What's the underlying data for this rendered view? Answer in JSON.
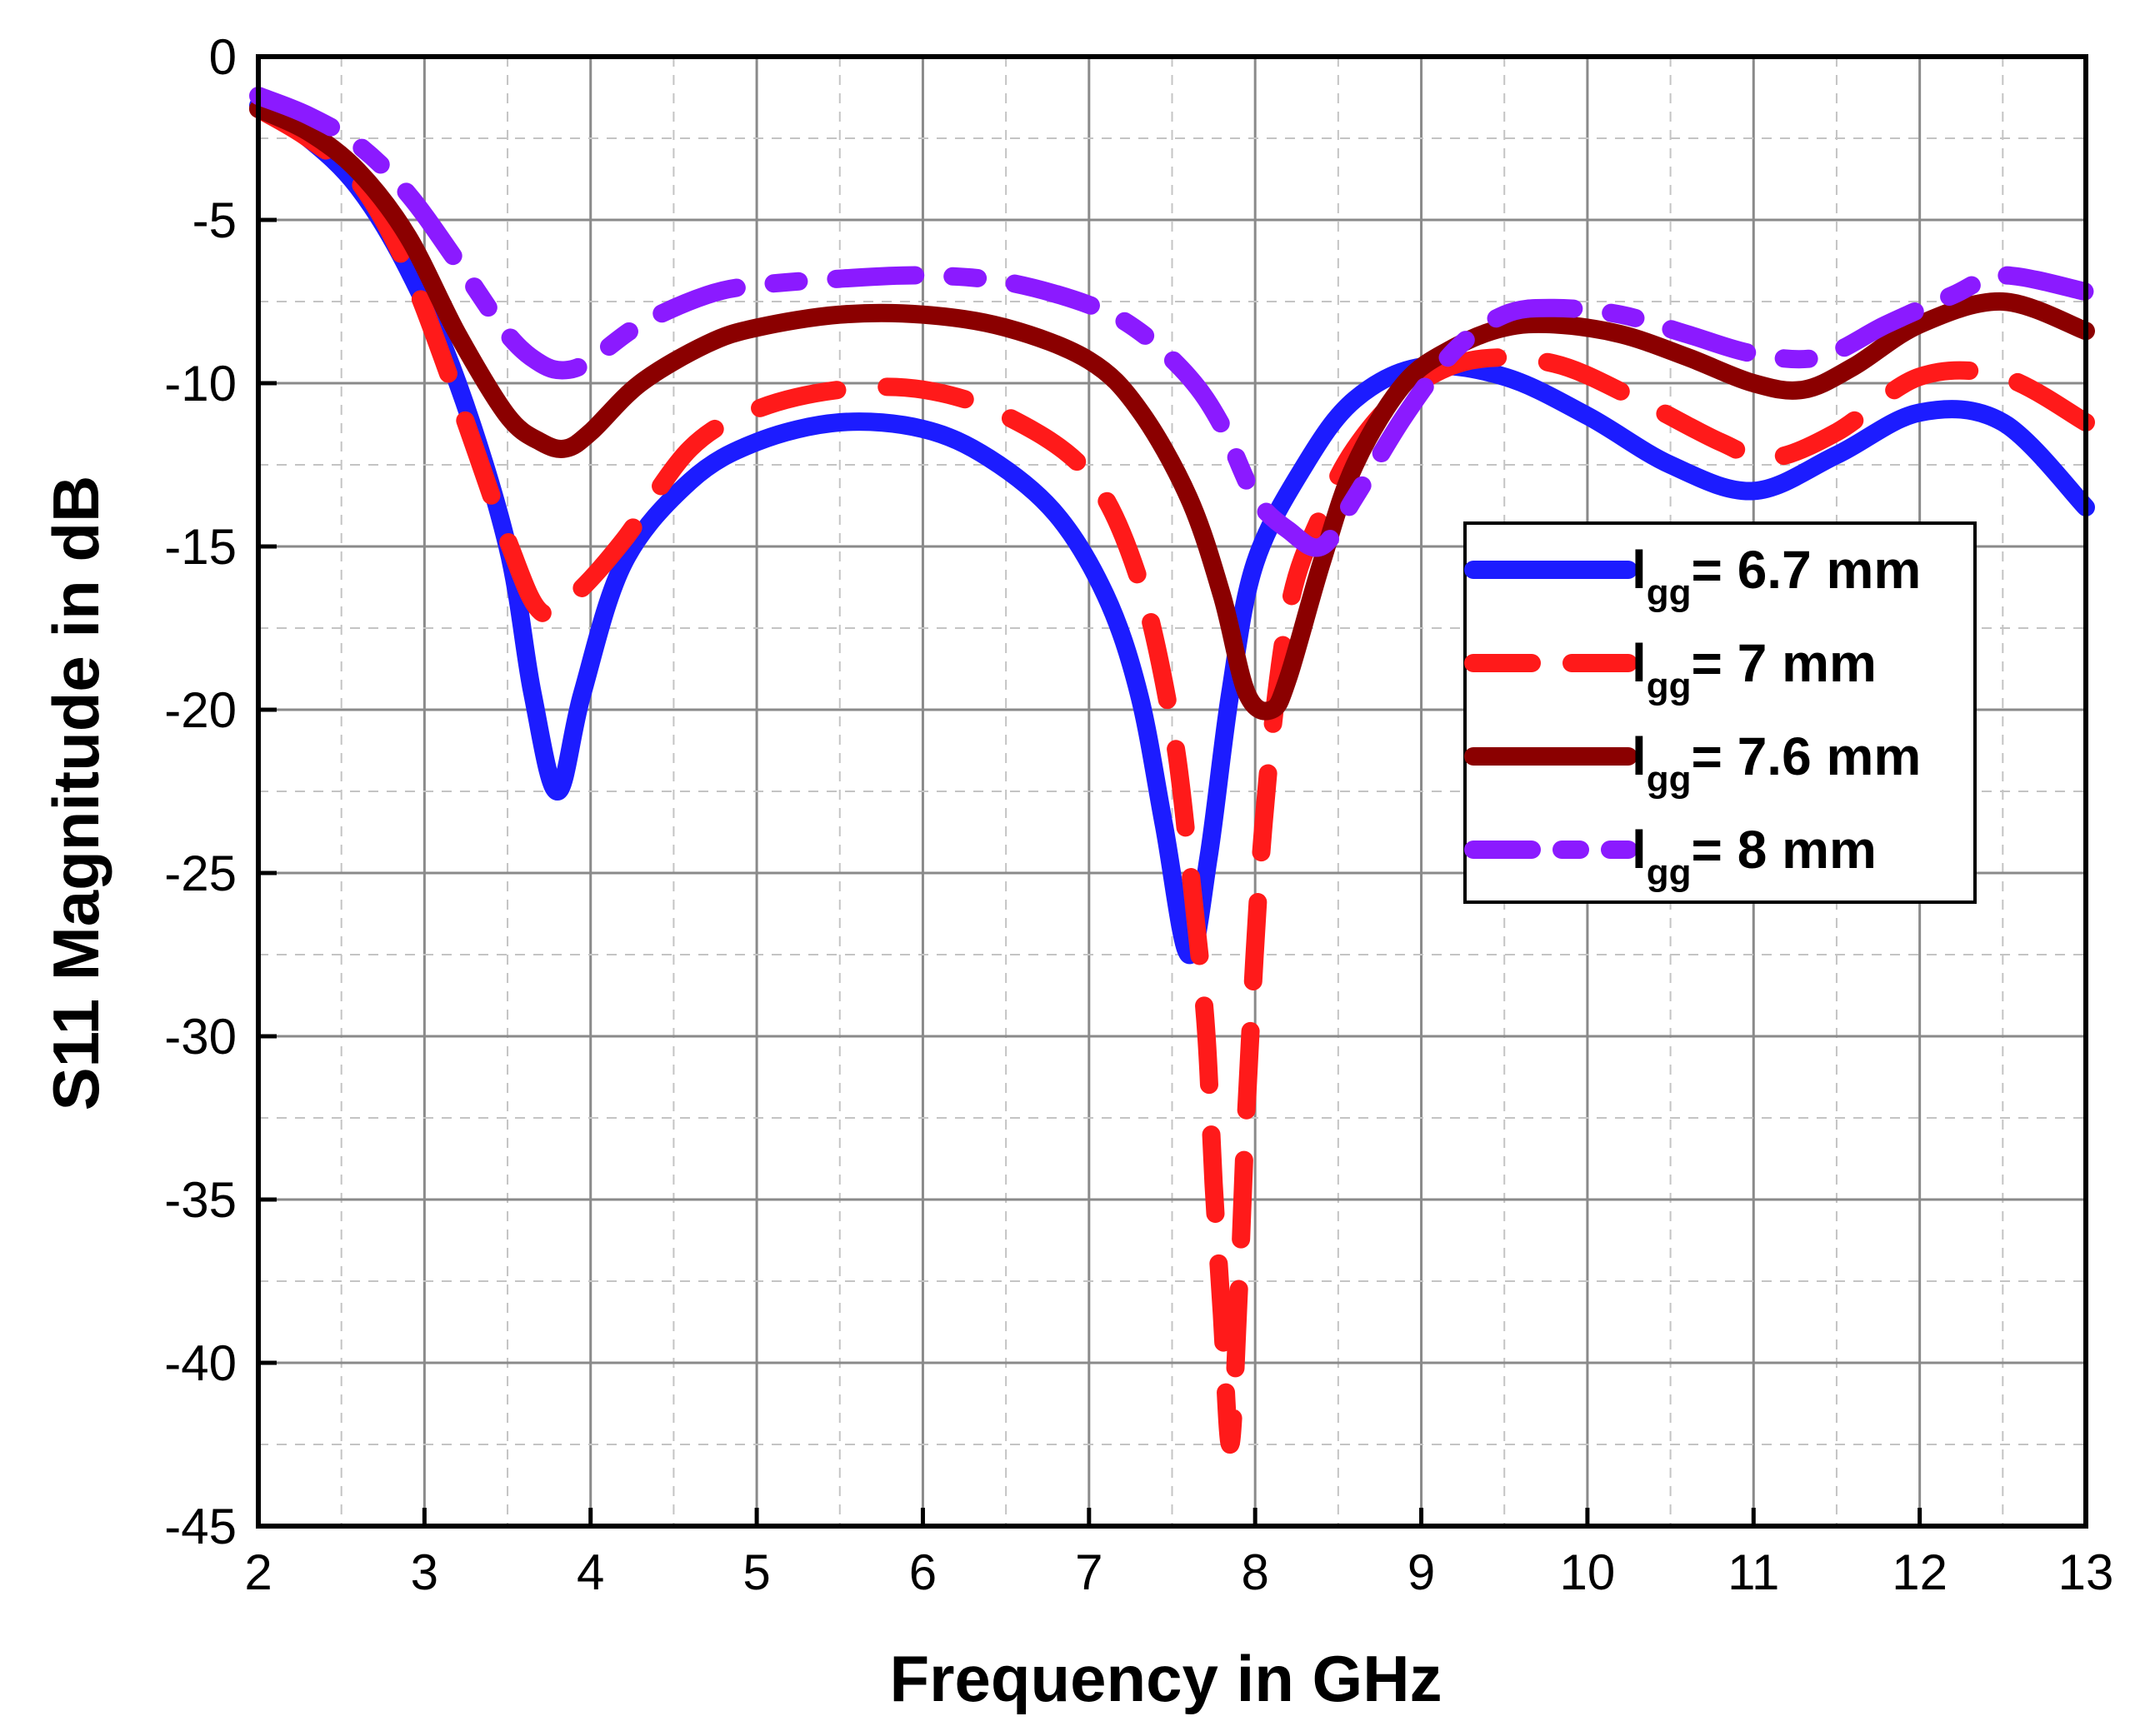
{
  "chart_data": {
    "type": "line",
    "xlabel": "Frequency in GHz",
    "ylabel": "S11 Magnitude in dB",
    "xlim": [
      2,
      13
    ],
    "ylim": [
      -45,
      0
    ],
    "xticks": [
      "2",
      "3",
      "4",
      "5",
      "6",
      "7",
      "8",
      "9",
      "10",
      "11",
      "12",
      "13"
    ],
    "yticks": [
      "0",
      "-5",
      "-10",
      "-15",
      "-20",
      "-25",
      "-30",
      "-35",
      "-40",
      "-45"
    ],
    "grid": true,
    "legend_position": "right-middle",
    "series": [
      {
        "name": "lgg= 6.7 mm",
        "label_main": "l",
        "label_sub": "gg",
        "label_rest": "= 6.7 mm",
        "color": "#1c1cff",
        "style": "solid",
        "x": [
          2.0,
          2.3,
          2.6,
          2.9,
          3.2,
          3.5,
          3.65,
          3.8,
          3.95,
          4.2,
          4.6,
          5.0,
          5.5,
          6.0,
          6.4,
          6.8,
          7.1,
          7.3,
          7.45,
          7.6,
          7.72,
          7.85,
          8.0,
          8.3,
          8.6,
          9.0,
          9.5,
          10.0,
          10.5,
          11.0,
          11.5,
          12.0,
          12.5,
          13.0
        ],
        "y": [
          -1.5,
          -2.5,
          -4.0,
          -6.5,
          -10.0,
          -15.0,
          -19.5,
          -22.5,
          -19.5,
          -15.5,
          -13.0,
          -11.8,
          -11.2,
          -11.4,
          -12.3,
          -14.0,
          -16.5,
          -19.5,
          -23.5,
          -27.5,
          -24.5,
          -19.5,
          -15.5,
          -12.5,
          -10.5,
          -9.5,
          -9.8,
          -11.0,
          -12.5,
          -13.3,
          -12.2,
          -10.9,
          -11.2,
          -13.8
        ]
      },
      {
        "name": "lgg= 7 mm",
        "label_main": "l",
        "label_sub": "gg",
        "label_rest": "= 7 mm",
        "color": "#ff1a1a",
        "style": "dash",
        "x": [
          2.0,
          2.3,
          2.6,
          2.9,
          3.2,
          3.5,
          3.7,
          3.9,
          4.2,
          4.6,
          5.0,
          5.5,
          6.0,
          6.5,
          7.0,
          7.3,
          7.5,
          7.6,
          7.7,
          7.75,
          7.8,
          7.85,
          7.9,
          7.95,
          8.05,
          8.2,
          8.4,
          8.6,
          8.9,
          9.3,
          9.8,
          10.3,
          10.8,
          11.1,
          11.5,
          12.0,
          12.5,
          13.0
        ],
        "y": [
          -1.6,
          -2.5,
          -3.8,
          -6.5,
          -10.5,
          -14.8,
          -17.0,
          -16.5,
          -14.8,
          -12.0,
          -10.8,
          -10.2,
          -10.2,
          -11.0,
          -12.8,
          -16.0,
          -20.5,
          -24.5,
          -29.5,
          -34.5,
          -38.5,
          -42.5,
          -38.0,
          -32.0,
          -23.5,
          -17.0,
          -14.0,
          -12.0,
          -10.3,
          -9.3,
          -9.4,
          -10.5,
          -11.8,
          -12.3,
          -11.5,
          -9.8,
          -9.8,
          -11.2
        ]
      },
      {
        "name": "lgg= 7.6 mm",
        "label_main": "l",
        "label_sub": "gg",
        "label_rest": "= 7.6 mm",
        "color": "#8b0000",
        "style": "solid",
        "x": [
          2.0,
          2.3,
          2.6,
          2.9,
          3.2,
          3.5,
          3.7,
          3.85,
          4.0,
          4.3,
          4.7,
          5.0,
          5.5,
          6.0,
          6.5,
          7.0,
          7.3,
          7.6,
          7.8,
          7.95,
          8.1,
          8.2,
          8.4,
          8.6,
          8.9,
          9.2,
          9.5,
          9.8,
          10.2,
          10.6,
          11.0,
          11.3,
          11.6,
          12.0,
          12.5,
          13.0
        ],
        "y": [
          -1.6,
          -2.3,
          -3.5,
          -5.5,
          -8.5,
          -11.0,
          -11.8,
          -12.0,
          -11.5,
          -10.0,
          -8.8,
          -8.3,
          -7.9,
          -7.9,
          -8.3,
          -9.3,
          -10.8,
          -13.5,
          -16.5,
          -19.5,
          -20.0,
          -19.0,
          -15.5,
          -12.5,
          -10.0,
          -8.9,
          -8.3,
          -8.2,
          -8.5,
          -9.2,
          -10.0,
          -10.2,
          -9.5,
          -8.2,
          -7.5,
          -8.4
        ]
      },
      {
        "name": "lgg= 8 mm",
        "label_main": "l",
        "label_sub": "gg",
        "label_rest": "= 8 mm",
        "color": "#8b1aff",
        "style": "dashdot",
        "x": [
          2.0,
          2.3,
          2.6,
          2.9,
          3.2,
          3.5,
          3.7,
          3.85,
          4.0,
          4.3,
          4.7,
          5.0,
          5.5,
          6.0,
          6.5,
          7.0,
          7.3,
          7.6,
          7.8,
          8.0,
          8.2,
          8.4,
          8.6,
          8.9,
          9.2,
          9.5,
          9.8,
          10.2,
          10.6,
          11.0,
          11.4,
          11.8,
          12.2,
          12.5,
          13.0
        ],
        "y": [
          -1.2,
          -1.8,
          -2.7,
          -4.2,
          -6.3,
          -8.5,
          -9.4,
          -9.6,
          -9.3,
          -8.2,
          -7.3,
          -7.0,
          -6.8,
          -6.7,
          -6.9,
          -7.6,
          -8.4,
          -9.8,
          -11.3,
          -13.5,
          -14.5,
          -15.0,
          -13.5,
          -11.0,
          -9.0,
          -7.9,
          -7.7,
          -7.9,
          -8.5,
          -9.1,
          -9.2,
          -8.2,
          -7.3,
          -6.7,
          -7.2
        ]
      }
    ]
  }
}
